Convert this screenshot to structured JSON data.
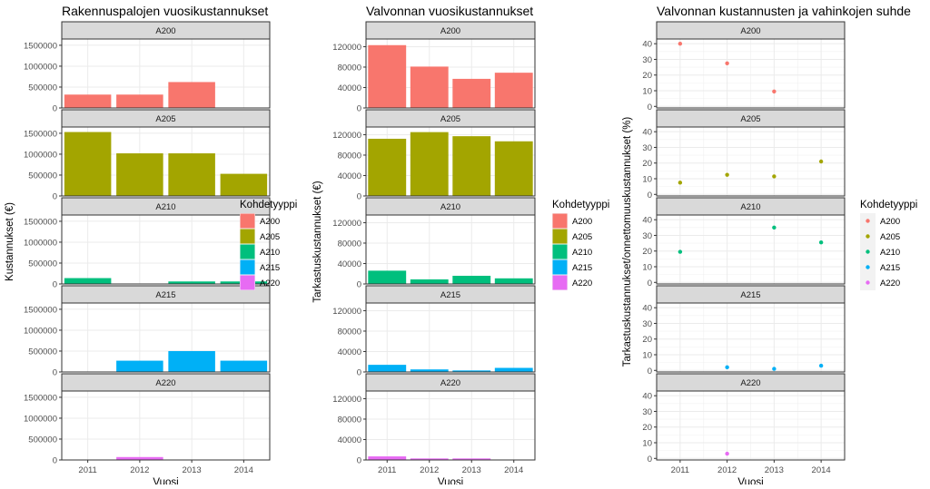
{
  "legend": {
    "title": "Kohdetyyppi",
    "items": [
      "A200",
      "A205",
      "A210",
      "A215",
      "A220"
    ],
    "colors": [
      "#F8766D",
      "#A3A500",
      "#00BF7D",
      "#00B0F6",
      "#E76BF3"
    ]
  },
  "chart_data": [
    {
      "type": "bar",
      "title": "Rakennuspalojen vuosikustannukset",
      "xlabel": "Vuosi",
      "ylabel": "Kustannukset (€)",
      "categories": [
        "2011",
        "2012",
        "2013",
        "2014"
      ],
      "ylim": [
        0,
        1650000
      ],
      "yticks": [
        0,
        500000,
        1000000,
        1500000
      ],
      "ytick_labels": [
        "0",
        "500000",
        "1000000",
        "1500000"
      ],
      "facets": [
        {
          "name": "A200",
          "values": [
            320000,
            320000,
            620000,
            0
          ]
        },
        {
          "name": "A205",
          "values": [
            1530000,
            1020000,
            1020000,
            530000
          ]
        },
        {
          "name": "A210",
          "values": [
            140000,
            0,
            60000,
            60000
          ]
        },
        {
          "name": "A215",
          "values": [
            0,
            270000,
            500000,
            270000
          ]
        },
        {
          "name": "A220",
          "values": [
            0,
            70000,
            0,
            0
          ]
        }
      ]
    },
    {
      "type": "bar",
      "title": "Valvonnan vuosikustannukset",
      "xlabel": "Vuosi",
      "ylabel": "Tarkastuskustannukset (€)",
      "categories": [
        "2011",
        "2012",
        "2013",
        "2014"
      ],
      "ylim": [
        0,
        135000
      ],
      "yticks": [
        0,
        40000,
        80000,
        120000
      ],
      "ytick_labels": [
        "0",
        "40000",
        "80000",
        "120000"
      ],
      "facets": [
        {
          "name": "A200",
          "values": [
            123000,
            81000,
            57000,
            69000
          ]
        },
        {
          "name": "A205",
          "values": [
            112000,
            125000,
            117000,
            107000
          ]
        },
        {
          "name": "A210",
          "values": [
            26000,
            9000,
            16000,
            11000
          ]
        },
        {
          "name": "A215",
          "values": [
            14000,
            5000,
            3000,
            8000
          ]
        },
        {
          "name": "A220",
          "values": [
            7000,
            3000,
            3000,
            0
          ]
        }
      ]
    },
    {
      "type": "scatter",
      "title": "Valvonnan kustannusten ja vahinkojen suhde",
      "xlabel": "Vuosi",
      "ylabel": "Tarkastuskustannukset/onnettomuuskustannukset (%)",
      "categories": [
        "2011",
        "2012",
        "2013",
        "2014"
      ],
      "ylim": [
        -1,
        43
      ],
      "yticks": [
        0,
        10,
        20,
        30,
        40
      ],
      "ytick_labels": [
        "0",
        "10",
        "20",
        "30",
        "40"
      ],
      "minor_gridlines": true,
      "facets": [
        {
          "name": "A200",
          "values": [
            40,
            27.5,
            9.5,
            null
          ]
        },
        {
          "name": "A205",
          "values": [
            7.5,
            12.5,
            11.5,
            21
          ]
        },
        {
          "name": "A210",
          "values": [
            19.5,
            null,
            35,
            25.5
          ]
        },
        {
          "name": "A215",
          "values": [
            null,
            2,
            1,
            3
          ]
        },
        {
          "name": "A220",
          "values": [
            null,
            3,
            null,
            null
          ]
        }
      ]
    }
  ]
}
